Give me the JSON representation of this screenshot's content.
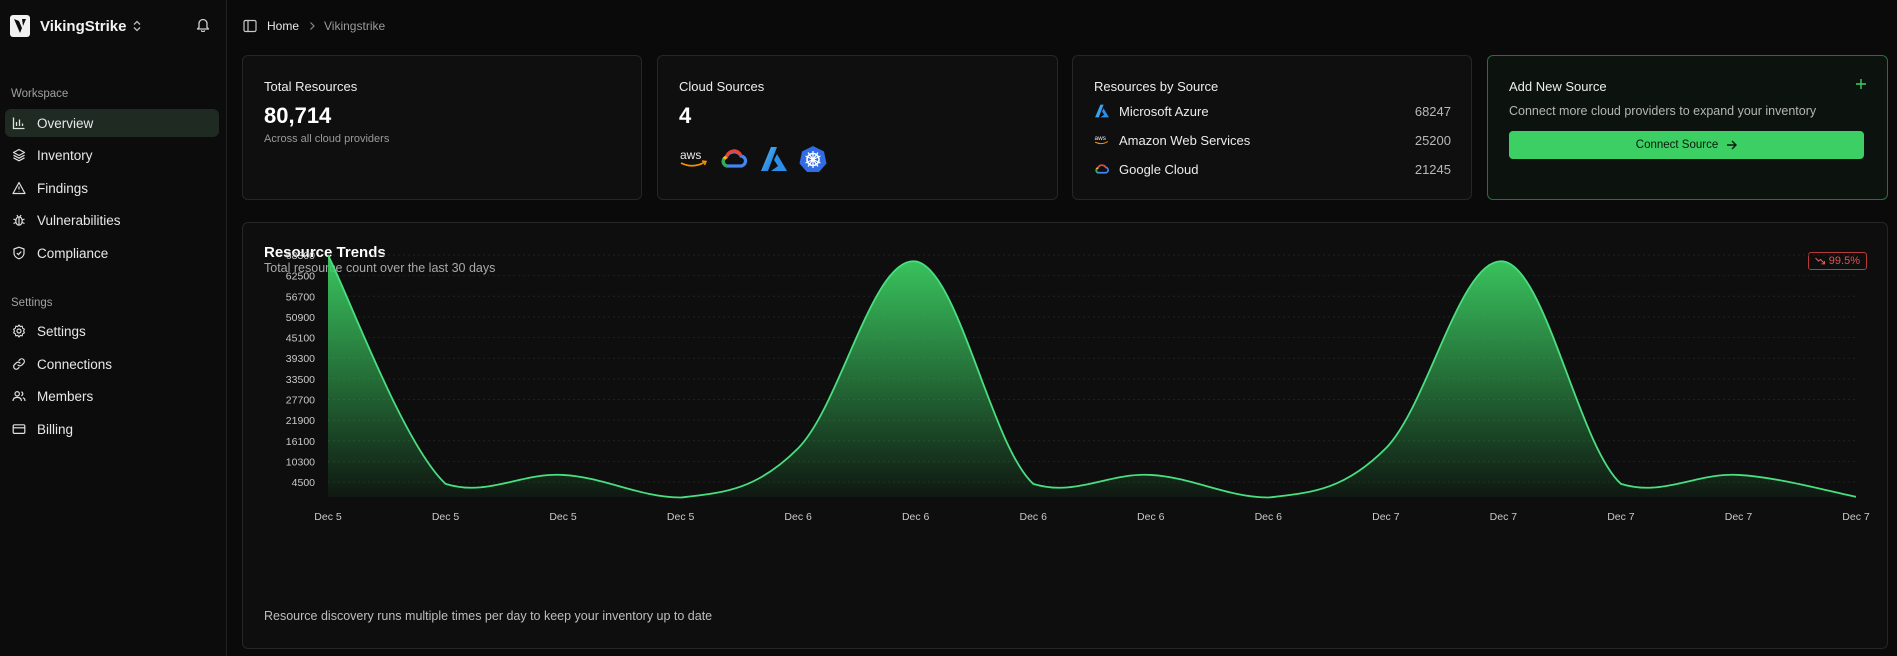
{
  "sidebar": {
    "brand": "VikingStrike",
    "sections": [
      {
        "label": "Workspace",
        "items": [
          {
            "label": "Overview",
            "icon": "chart-bar-icon",
            "active": true
          },
          {
            "label": "Inventory",
            "icon": "layers-icon"
          },
          {
            "label": "Findings",
            "icon": "alert-triangle-icon"
          },
          {
            "label": "Vulnerabilities",
            "icon": "bug-icon"
          },
          {
            "label": "Compliance",
            "icon": "shield-check-icon"
          }
        ]
      },
      {
        "label": "Settings",
        "items": [
          {
            "label": "Settings",
            "icon": "gear-icon"
          },
          {
            "label": "Connections",
            "icon": "link-icon"
          },
          {
            "label": "Members",
            "icon": "users-icon"
          },
          {
            "label": "Billing",
            "icon": "credit-card-icon"
          }
        ]
      }
    ]
  },
  "breadcrumb": {
    "home": "Home",
    "current": "Vikingstrike"
  },
  "cards": {
    "total": {
      "title": "Total Resources",
      "value": "80,714",
      "sub": "Across all cloud providers"
    },
    "cloud": {
      "title": "Cloud Sources",
      "value": "4",
      "logos": [
        "aws-logo",
        "google-cloud-logo",
        "azure-logo",
        "kubernetes-logo"
      ]
    },
    "by_source": {
      "title": "Resources by Source",
      "rows": [
        {
          "name": "Microsoft Azure",
          "value": "68247",
          "icon": "azure-logo"
        },
        {
          "name": "Amazon Web Services",
          "value": "25200",
          "icon": "aws-logo"
        },
        {
          "name": "Google Cloud",
          "value": "21245",
          "icon": "google-cloud-logo"
        }
      ]
    },
    "add": {
      "title": "Add New Source",
      "desc": "Connect more cloud providers to expand your inventory",
      "button": "Connect Source"
    }
  },
  "trend": {
    "title": "Resource Trends",
    "subtitle": "Total resource count over the last 30 days",
    "badge": "99.5%",
    "badge_color": "#e05555",
    "footnote": "Resource discovery runs multiple times per day to keep your inventory up to date"
  },
  "chart_data": {
    "type": "area",
    "x": [
      "Dec 5",
      "Dec 5",
      "Dec 5",
      "Dec 5",
      "Dec 6",
      "Dec 6",
      "Dec 6",
      "Dec 6",
      "Dec 6",
      "Dec 7",
      "Dec 7",
      "Dec 7",
      "Dec 7",
      "Dec 7"
    ],
    "values": [
      68247,
      4000,
      6500,
      150,
      14000,
      66500,
      4000,
      6500,
      150,
      14000,
      66500,
      4000,
      6500,
      350
    ],
    "y_ticks": [
      4500,
      10300,
      16100,
      21900,
      27700,
      33500,
      39300,
      45100,
      50900,
      56700,
      62500,
      68300
    ],
    "ylim": [
      300,
      68300
    ],
    "grid": true,
    "color": "#3ccf63"
  }
}
